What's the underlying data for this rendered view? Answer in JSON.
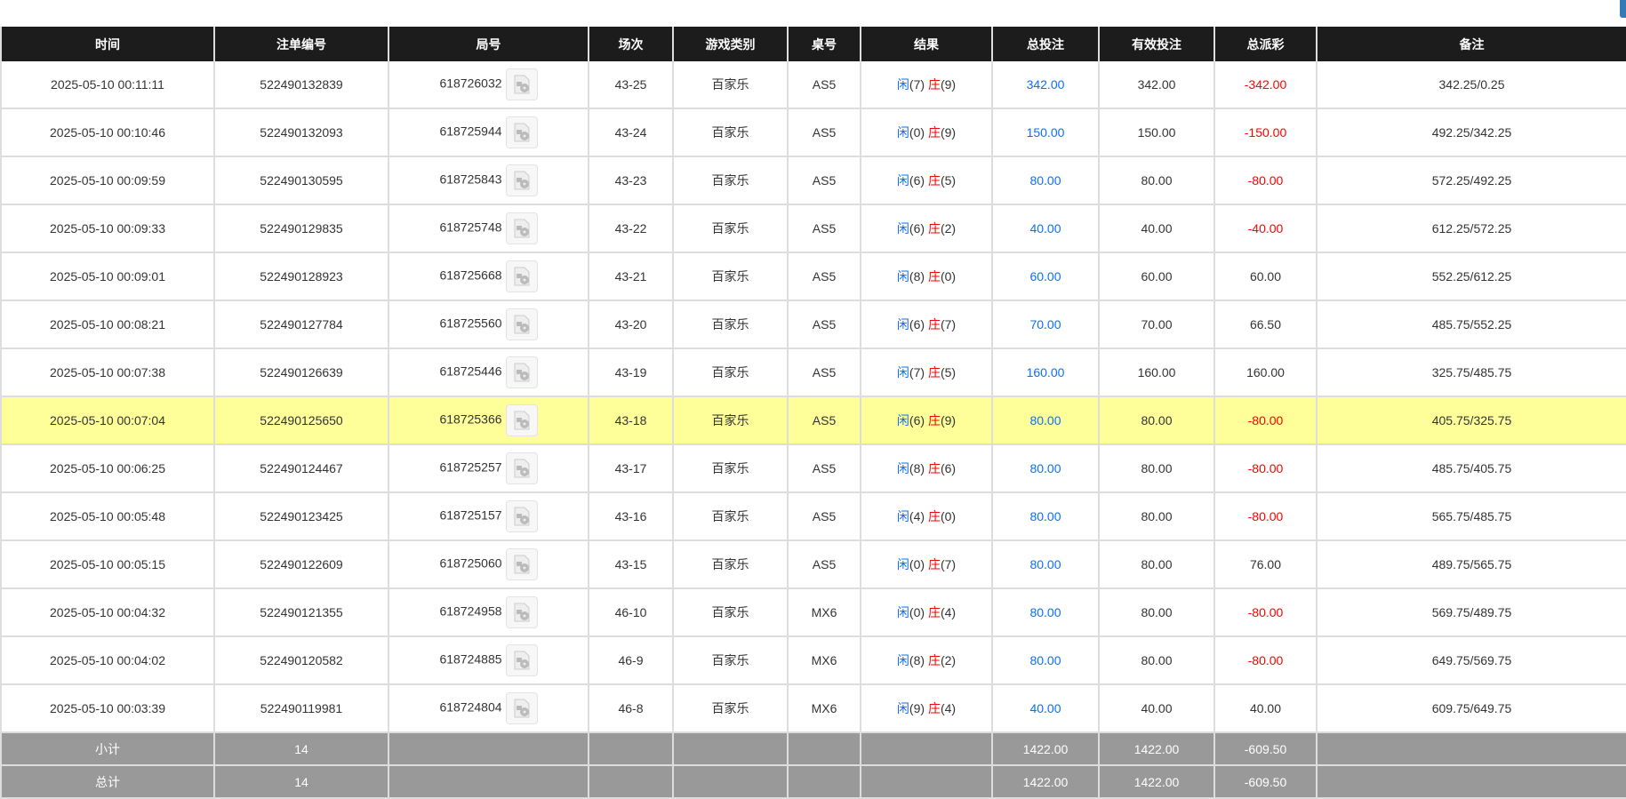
{
  "columns": [
    "时间",
    "注单编号",
    "局号",
    "场次",
    "游戏类别",
    "桌号",
    "结果",
    "总投注",
    "有效投注",
    "总派彩",
    "备注"
  ],
  "result_labels": {
    "player": "闲",
    "banker": "庄"
  },
  "colors": {
    "header_bg": "#1c1c1c",
    "highlight_row": "#ffff99",
    "summary_bg": "#999999",
    "bet_blue": "#0d6efd",
    "negative_red": "#ff0000"
  },
  "highlighted_row_index": 7,
  "rows": [
    {
      "time": "2025-05-10 00:11:11",
      "bet_id": "522490132839",
      "round": "618726032",
      "shoe": "43-25",
      "game": "百家乐",
      "table": "AS5",
      "player": "(7)",
      "banker": "(9)",
      "total_bet": "342.00",
      "valid_bet": "342.00",
      "payout": "-342.00",
      "note": "342.25/0.25"
    },
    {
      "time": "2025-05-10 00:10:46",
      "bet_id": "522490132093",
      "round": "618725944",
      "shoe": "43-24",
      "game": "百家乐",
      "table": "AS5",
      "player": "(0)",
      "banker": "(9)",
      "total_bet": "150.00",
      "valid_bet": "150.00",
      "payout": "-150.00",
      "note": "492.25/342.25"
    },
    {
      "time": "2025-05-10 00:09:59",
      "bet_id": "522490130595",
      "round": "618725843",
      "shoe": "43-23",
      "game": "百家乐",
      "table": "AS5",
      "player": "(6)",
      "banker": "(5)",
      "total_bet": "80.00",
      "valid_bet": "80.00",
      "payout": "-80.00",
      "note": "572.25/492.25"
    },
    {
      "time": "2025-05-10 00:09:33",
      "bet_id": "522490129835",
      "round": "618725748",
      "shoe": "43-22",
      "game": "百家乐",
      "table": "AS5",
      "player": "(6)",
      "banker": "(2)",
      "total_bet": "40.00",
      "valid_bet": "40.00",
      "payout": "-40.00",
      "note": "612.25/572.25"
    },
    {
      "time": "2025-05-10 00:09:01",
      "bet_id": "522490128923",
      "round": "618725668",
      "shoe": "43-21",
      "game": "百家乐",
      "table": "AS5",
      "player": "(8)",
      "banker": "(0)",
      "total_bet": "60.00",
      "valid_bet": "60.00",
      "payout": "60.00",
      "note": "552.25/612.25"
    },
    {
      "time": "2025-05-10 00:08:21",
      "bet_id": "522490127784",
      "round": "618725560",
      "shoe": "43-20",
      "game": "百家乐",
      "table": "AS5",
      "player": "(6)",
      "banker": "(7)",
      "total_bet": "70.00",
      "valid_bet": "70.00",
      "payout": "66.50",
      "note": "485.75/552.25"
    },
    {
      "time": "2025-05-10 00:07:38",
      "bet_id": "522490126639",
      "round": "618725446",
      "shoe": "43-19",
      "game": "百家乐",
      "table": "AS5",
      "player": "(7)",
      "banker": "(5)",
      "total_bet": "160.00",
      "valid_bet": "160.00",
      "payout": "160.00",
      "note": "325.75/485.75"
    },
    {
      "time": "2025-05-10 00:07:04",
      "bet_id": "522490125650",
      "round": "618725366",
      "shoe": "43-18",
      "game": "百家乐",
      "table": "AS5",
      "player": "(6)",
      "banker": "(9)",
      "total_bet": "80.00",
      "valid_bet": "80.00",
      "payout": "-80.00",
      "note": "405.75/325.75"
    },
    {
      "time": "2025-05-10 00:06:25",
      "bet_id": "522490124467",
      "round": "618725257",
      "shoe": "43-17",
      "game": "百家乐",
      "table": "AS5",
      "player": "(8)",
      "banker": "(6)",
      "total_bet": "80.00",
      "valid_bet": "80.00",
      "payout": "-80.00",
      "note": "485.75/405.75"
    },
    {
      "time": "2025-05-10 00:05:48",
      "bet_id": "522490123425",
      "round": "618725157",
      "shoe": "43-16",
      "game": "百家乐",
      "table": "AS5",
      "player": "(4)",
      "banker": "(0)",
      "total_bet": "80.00",
      "valid_bet": "80.00",
      "payout": "-80.00",
      "note": "565.75/485.75"
    },
    {
      "time": "2025-05-10 00:05:15",
      "bet_id": "522490122609",
      "round": "618725060",
      "shoe": "43-15",
      "game": "百家乐",
      "table": "AS5",
      "player": "(0)",
      "banker": "(7)",
      "total_bet": "80.00",
      "valid_bet": "80.00",
      "payout": "76.00",
      "note": "489.75/565.75"
    },
    {
      "time": "2025-05-10 00:04:32",
      "bet_id": "522490121355",
      "round": "618724958",
      "shoe": "46-10",
      "game": "百家乐",
      "table": "MX6",
      "player": "(0)",
      "banker": "(4)",
      "total_bet": "80.00",
      "valid_bet": "80.00",
      "payout": "-80.00",
      "note": "569.75/489.75"
    },
    {
      "time": "2025-05-10 00:04:02",
      "bet_id": "522490120582",
      "round": "618724885",
      "shoe": "46-9",
      "game": "百家乐",
      "table": "MX6",
      "player": "(8)",
      "banker": "(2)",
      "total_bet": "80.00",
      "valid_bet": "80.00",
      "payout": "-80.00",
      "note": "649.75/569.75"
    },
    {
      "time": "2025-05-10 00:03:39",
      "bet_id": "522490119981",
      "round": "618724804",
      "shoe": "46-8",
      "game": "百家乐",
      "table": "MX6",
      "player": "(9)",
      "banker": "(4)",
      "total_bet": "40.00",
      "valid_bet": "40.00",
      "payout": "40.00",
      "note": "609.75/649.75"
    }
  ],
  "summary": [
    {
      "label": "小计",
      "count": "14",
      "total_bet": "1422.00",
      "valid_bet": "1422.00",
      "payout": "-609.50"
    },
    {
      "label": "总计",
      "count": "14",
      "total_bet": "1422.00",
      "valid_bet": "1422.00",
      "payout": "-609.50"
    }
  ]
}
